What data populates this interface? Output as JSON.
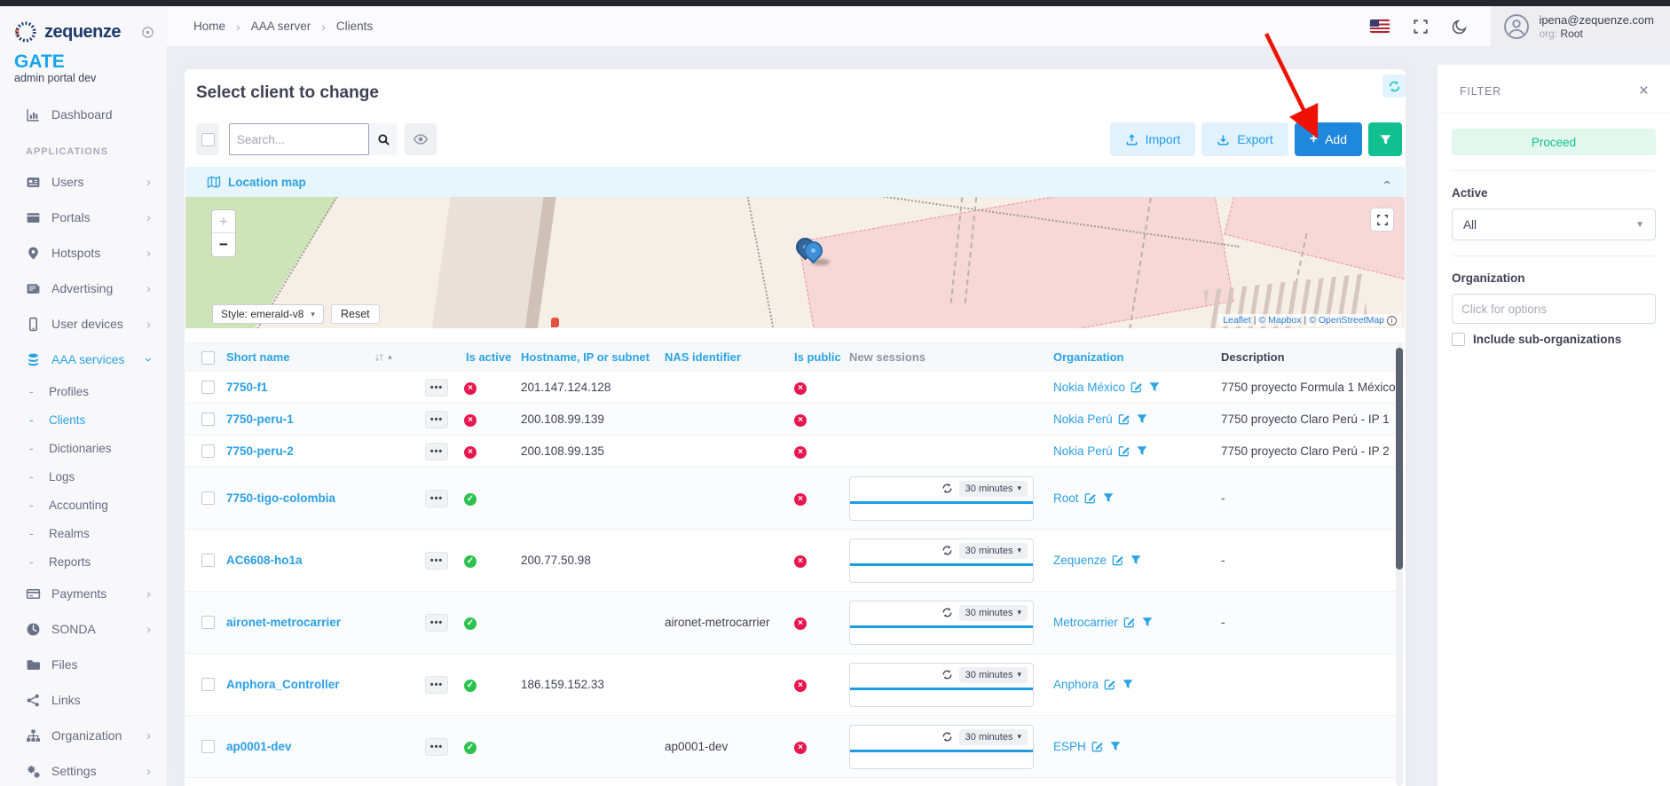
{
  "brand": {
    "name": "zequenze",
    "product": "GATE",
    "subtitle": "admin portal dev"
  },
  "topbar": {
    "breadcrumb": [
      "Home",
      "AAA server",
      "Clients"
    ],
    "user": {
      "email": "ipena@zequenze.com",
      "org_label": "org:",
      "org": "Root"
    }
  },
  "sidebar": {
    "dashboard": "Dashboard",
    "section": "APPLICATIONS",
    "items": [
      {
        "label": "Users",
        "icon": "id-card",
        "chevron": "right"
      },
      {
        "label": "Portals",
        "icon": "window",
        "chevron": "right"
      },
      {
        "label": "Hotspots",
        "icon": "map-pin",
        "chevron": "right"
      },
      {
        "label": "Advertising",
        "icon": "newspaper",
        "chevron": "right"
      },
      {
        "label": "User devices",
        "icon": "mobile",
        "chevron": "right"
      },
      {
        "label": "AAA services",
        "icon": "database",
        "chevron": "down",
        "active": true,
        "children": [
          {
            "label": "Profiles"
          },
          {
            "label": "Clients",
            "active": true
          },
          {
            "label": "Dictionaries"
          },
          {
            "label": "Logs"
          },
          {
            "label": "Accounting"
          },
          {
            "label": "Realms"
          },
          {
            "label": "Reports"
          }
        ]
      },
      {
        "label": "Payments",
        "icon": "credit-card",
        "chevron": "right"
      },
      {
        "label": "SONDA",
        "icon": "gauge",
        "chevron": "right"
      },
      {
        "label": "Files",
        "icon": "folder"
      },
      {
        "label": "Links",
        "icon": "share"
      },
      {
        "label": "Organization",
        "icon": "sitemap",
        "chevron": "right"
      },
      {
        "label": "Settings",
        "icon": "gears",
        "chevron": "right"
      }
    ]
  },
  "content": {
    "title": "Select client to change",
    "search_placeholder": "Search...",
    "toolbar": {
      "import": "Import",
      "export": "Export",
      "add_plus": "+",
      "add": "Add"
    },
    "map": {
      "header": "Location map",
      "zoom_in": "+",
      "zoom_out": "−",
      "style": "Style: emerald-v8",
      "style_caret": "▾",
      "reset": "Reset",
      "attribution": {
        "leaflet": "Leaflet",
        "sep": "|",
        "mapbox": "© Mapbox",
        "osm": "© OpenStreetMap",
        "info": "i"
      }
    }
  },
  "table": {
    "columns": {
      "short_name": "Short name",
      "is_active": "Is active",
      "hostname": "Hostname, IP or subnet",
      "nas": "NAS identifier",
      "is_public": "Is public",
      "new_sessions": "New sessions",
      "organization": "Organization",
      "description": "Description"
    },
    "session_widget": {
      "interval": "30 minutes"
    },
    "rows": [
      {
        "name": "7750-f1",
        "active": false,
        "hostname": "201.147.124.128",
        "nas": "",
        "public": false,
        "sessions": false,
        "org": "Nokia México",
        "desc": "7750 proyecto Formula 1 México"
      },
      {
        "name": "7750-peru-1",
        "active": false,
        "hostname": "200.108.99.139",
        "nas": "",
        "public": false,
        "sessions": false,
        "org": "Nokia Perú",
        "desc": "7750 proyecto Claro Perú - IP 1"
      },
      {
        "name": "7750-peru-2",
        "active": false,
        "hostname": "200.108.99.135",
        "nas": "",
        "public": false,
        "sessions": false,
        "org": "Nokia Perú",
        "desc": "7750 proyecto Claro Perú - IP 2"
      },
      {
        "name": "7750-tigo-colombia",
        "active": true,
        "hostname": "",
        "nas": "",
        "public": false,
        "sessions": true,
        "org": "Root",
        "desc": "-"
      },
      {
        "name": "AC6608-ho1a",
        "active": true,
        "hostname": "200.77.50.98",
        "nas": "",
        "public": false,
        "sessions": true,
        "org": "Zequenze",
        "desc": "-"
      },
      {
        "name": "aironet-metrocarrier",
        "active": true,
        "hostname": "",
        "nas": "aironet-metrocarrier",
        "public": false,
        "sessions": true,
        "org": "Metrocarrier",
        "desc": "-"
      },
      {
        "name": "Anphora_Controller",
        "active": true,
        "hostname": "186.159.152.33",
        "nas": "",
        "public": false,
        "sessions": true,
        "org": "Anphora",
        "desc": ""
      },
      {
        "name": "ap0001-dev",
        "active": true,
        "hostname": "",
        "nas": "ap0001-dev",
        "public": false,
        "sessions": true,
        "org": "ESPH",
        "desc": ""
      }
    ]
  },
  "filter": {
    "title": "FILTER",
    "close": "×",
    "proceed": "Proceed",
    "active_label": "Active",
    "active_value": "All",
    "organization_label": "Organization",
    "organization_placeholder": "Click for options",
    "include_label": "Include sub-organizations"
  },
  "colors": {
    "accent_blue": "#2aa2e4",
    "primary_blue": "#1f87dc",
    "action_green": "#10c08e",
    "proceed_teal": "#0cbf8c",
    "danger_red": "#e8174f",
    "success_green": "#2dc24e",
    "brand_navy": "#1b3a6b",
    "gate_blue": "#17a4ee",
    "annotation_red": "#ee1205"
  }
}
